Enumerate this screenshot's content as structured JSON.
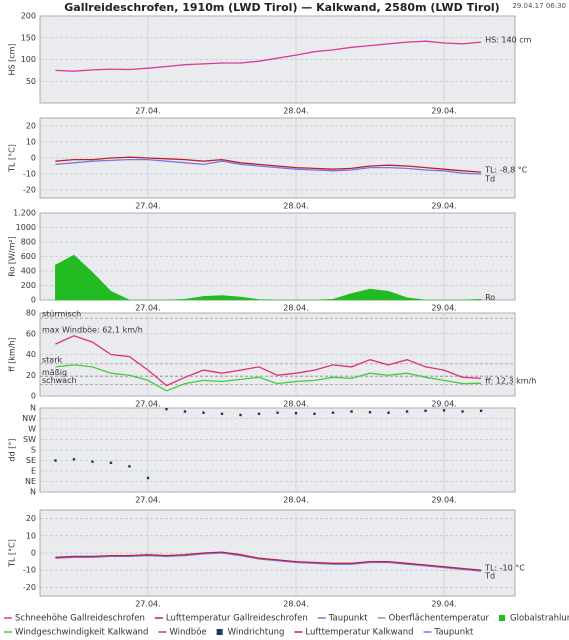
{
  "title": "Gallreideschrofen, 1910m (LWD Tirol) — Kalkwand, 2580m (LWD Tirol)",
  "timestamp": "29.04.17 06:30",
  "chart_data": [
    {
      "type": "line",
      "ylabel": "HS [cm]",
      "ylabel_color": "#e0379a",
      "x": [
        -15,
        -12,
        -9,
        -6,
        -3,
        0,
        3,
        6,
        9,
        12,
        15,
        18,
        21,
        24,
        27,
        30,
        33,
        36,
        39,
        42,
        45,
        48,
        51,
        54
      ],
      "xlim": [
        -17.5,
        59.5
      ],
      "xticks": [
        {
          "value": 0,
          "label": "27.04."
        },
        {
          "value": 24,
          "label": "28.04."
        },
        {
          "value": 48,
          "label": "29.04."
        }
      ],
      "ylim": [
        0,
        200
      ],
      "yticks": [
        50,
        100,
        150,
        200
      ],
      "series": [
        {
          "color": "#e0379a",
          "values": [
            75,
            73,
            76,
            78,
            77,
            80,
            84,
            88,
            90,
            92,
            92,
            96,
            103,
            110,
            118,
            122,
            128,
            132,
            136,
            140,
            142,
            138,
            136,
            140
          ],
          "end_label": "HS: 140 cm"
        }
      ]
    },
    {
      "type": "line",
      "ylabel": "TL [°C]",
      "ylabel_color": "#c0202a",
      "x": [
        -15,
        -12,
        -9,
        -6,
        -3,
        0,
        3,
        6,
        9,
        12,
        15,
        18,
        21,
        24,
        27,
        30,
        33,
        36,
        39,
        42,
        45,
        48,
        51,
        54
      ],
      "xlim": [
        -17.5,
        59.5
      ],
      "xticks": [
        {
          "value": 0,
          "label": "27.04."
        },
        {
          "value": 24,
          "label": "28.04."
        },
        {
          "value": 48,
          "label": "29.04."
        }
      ],
      "ylim": [
        -25,
        25
      ],
      "yticks": [
        -20,
        -10,
        0,
        10,
        20
      ],
      "series": [
        {
          "color": "#7a78e0",
          "values": [
            -4,
            -3,
            -2,
            -1.5,
            -1,
            -1,
            -2,
            -3,
            -4,
            -2,
            -4,
            -5,
            -6,
            -7,
            -7.5,
            -8,
            -7.5,
            -6,
            -6,
            -6.5,
            -7.5,
            -8,
            -9.5,
            -10
          ],
          "end_label": "Td"
        },
        {
          "color": "#c0202a",
          "values": [
            -2,
            -1,
            -1,
            0,
            0.5,
            0,
            -0.5,
            -1,
            -2,
            -1,
            -3,
            -4,
            -5,
            -6,
            -6.5,
            -7,
            -6.5,
            -5,
            -4.5,
            -5,
            -6,
            -7,
            -8,
            -8.8
          ],
          "end_label": "TL: -8,8 °C"
        }
      ]
    },
    {
      "type": "area",
      "ylabel": "Ro [W/m²]",
      "ylabel_color": "#22aa22",
      "x": [
        -15,
        -12,
        -9,
        -6,
        -3,
        0,
        3,
        6,
        9,
        12,
        15,
        18,
        21,
        24,
        27,
        30,
        33,
        36,
        39,
        42,
        45,
        48,
        51,
        54
      ],
      "xlim": [
        -17.5,
        59.5
      ],
      "xticks": [
        {
          "value": 0,
          "label": "27.04."
        },
        {
          "value": 24,
          "label": "28.04."
        },
        {
          "value": 48,
          "label": "29.04."
        }
      ],
      "ylim": [
        0,
        1200
      ],
      "yticks": [
        0,
        200,
        400,
        600,
        800,
        1000,
        {
          "value": 1200,
          "label": "1.200"
        }
      ],
      "series": [
        {
          "color": "#22bb22",
          "values": [
            480,
            620,
            380,
            120,
            0,
            0,
            0,
            10,
            50,
            60,
            40,
            5,
            0,
            0,
            0,
            10,
            90,
            150,
            120,
            30,
            0,
            0,
            0,
            10
          ],
          "end_label": "Ro"
        }
      ]
    },
    {
      "type": "line",
      "ylabel": "ff [km/h]",
      "ylabel_color": "#22aa22",
      "x": [
        -15,
        -12,
        -9,
        -6,
        -3,
        0,
        3,
        6,
        9,
        12,
        15,
        18,
        21,
        24,
        27,
        30,
        33,
        36,
        39,
        42,
        45,
        48,
        51,
        54
      ],
      "xlim": [
        -17.5,
        59.5
      ],
      "xticks": [
        {
          "value": 0,
          "label": "27.04."
        },
        {
          "value": 24,
          "label": "28.04."
        },
        {
          "value": 48,
          "label": "29.04."
        }
      ],
      "ylim": [
        0,
        80
      ],
      "yticks": [
        0,
        20,
        40,
        60,
        80
      ],
      "bands": [
        {
          "label": "stürmisch",
          "value": 75
        },
        {
          "label": "stark",
          "value": 31
        },
        {
          "label": "mäßig",
          "value": 19
        },
        {
          "label": "schwach",
          "value": 11
        }
      ],
      "note": "max Windböe: 62,1 km/h",
      "note_color": "#d0206a",
      "series": [
        {
          "color": "#e0307a",
          "values": [
            50,
            58,
            52,
            40,
            38,
            25,
            10,
            18,
            25,
            22,
            25,
            28,
            20,
            22,
            25,
            30,
            28,
            35,
            30,
            35,
            28,
            25,
            18,
            17
          ]
        },
        {
          "color": "#44cc44",
          "values": [
            28,
            30,
            28,
            22,
            20,
            15,
            5,
            12,
            15,
            14,
            16,
            18,
            12,
            14,
            15,
            18,
            17,
            22,
            20,
            22,
            18,
            15,
            12,
            12.3
          ],
          "end_label": "ff: 12,3 km/h"
        }
      ]
    },
    {
      "type": "scatter",
      "ylabel": "dd [°]",
      "ylabel_color": "#1a3a6a",
      "x": [
        -15,
        -12,
        -9,
        -6,
        -3,
        0,
        3,
        6,
        9,
        12,
        15,
        18,
        21,
        24,
        27,
        30,
        33,
        36,
        39,
        42,
        45,
        48,
        51,
        54
      ],
      "xlim": [
        -17.5,
        59.5
      ],
      "xticks": [
        {
          "value": 0,
          "label": "27.04."
        },
        {
          "value": 24,
          "label": "28.04."
        },
        {
          "value": 48,
          "label": "29.04."
        }
      ],
      "ylim": [
        0,
        360
      ],
      "yticks": [
        {
          "value": 0,
          "label": "N"
        },
        {
          "value": 45,
          "label": "NE"
        },
        {
          "value": 90,
          "label": "E"
        },
        {
          "value": 135,
          "label": "SE"
        },
        {
          "value": 180,
          "label": "S"
        },
        {
          "value": 225,
          "label": "SW"
        },
        {
          "value": 270,
          "label": "W"
        },
        {
          "value": 315,
          "label": "NW"
        },
        {
          "value": 360,
          "label": "N"
        }
      ],
      "series": [
        {
          "color": "#1a3a6a",
          "values": [
            135,
            140,
            130,
            125,
            110,
            60,
            355,
            345,
            340,
            335,
            330,
            335,
            340,
            338,
            335,
            340,
            345,
            342,
            340,
            345,
            348,
            350,
            345,
            348
          ]
        }
      ]
    },
    {
      "type": "line",
      "ylabel": "TL [°C]",
      "ylabel_color": "#c0202a",
      "x": [
        -15,
        -12,
        -9,
        -6,
        -3,
        0,
        3,
        6,
        9,
        12,
        15,
        18,
        21,
        24,
        27,
        30,
        33,
        36,
        39,
        42,
        45,
        48,
        51,
        54
      ],
      "xlim": [
        -17.5,
        59.5
      ],
      "xticks": [
        {
          "value": 0,
          "label": "27.04."
        },
        {
          "value": 24,
          "label": "28.04."
        },
        {
          "value": 48,
          "label": "29.04."
        }
      ],
      "ylim": [
        -25,
        25
      ],
      "yticks": [
        -20,
        -10,
        0,
        10,
        20
      ],
      "series": [
        {
          "color": "#7a78e0",
          "values": [
            -3,
            -2.5,
            -2.5,
            -2,
            -2,
            -1.5,
            -2,
            -1.5,
            -0.5,
            0,
            -1.5,
            -3.5,
            -4.5,
            -5.5,
            -6,
            -6.5,
            -6.5,
            -5.5,
            -5.5,
            -6.5,
            -7.5,
            -8.5,
            -9.5,
            -10.5
          ],
          "end_label": "Td"
        },
        {
          "color": "#c02040",
          "values": [
            -2.5,
            -2,
            -2,
            -1.5,
            -1.5,
            -1,
            -1.5,
            -1,
            0,
            0.5,
            -1,
            -3,
            -4,
            -5,
            -5.5,
            -6,
            -6,
            -5,
            -5,
            -6,
            -7,
            -8,
            -9,
            -10
          ],
          "end_label": "TL: -10 °C"
        }
      ]
    }
  ],
  "legend": [
    {
      "name": "Schneehöhe Gallreideschrofen",
      "color": "#e0379a",
      "marker": "line"
    },
    {
      "name": "Lufttemperatur Gallreideschrofen",
      "color": "#c0202a",
      "marker": "line"
    },
    {
      "name": "Taupunkt",
      "color": "#7a78e0",
      "marker": "line"
    },
    {
      "name": "Oberflächentemperatur",
      "color": "#999999",
      "marker": "line"
    },
    {
      "name": "Globalstrahlung (oben)",
      "color": "#22bb22",
      "marker": "square"
    },
    {
      "name": "Windgeschwindigkeit Kalkwand",
      "color": "#44cc44",
      "marker": "line"
    },
    {
      "name": "Windböe",
      "color": "#e0307a",
      "marker": "line"
    },
    {
      "name": "Windrichtung",
      "color": "#1a3a6a",
      "marker": "square"
    },
    {
      "name": "Lufttemperatur Kalkwand",
      "color": "#c02040",
      "marker": "line"
    },
    {
      "name": "Taupunkt",
      "color": "#7a78e0",
      "marker": "line"
    }
  ]
}
